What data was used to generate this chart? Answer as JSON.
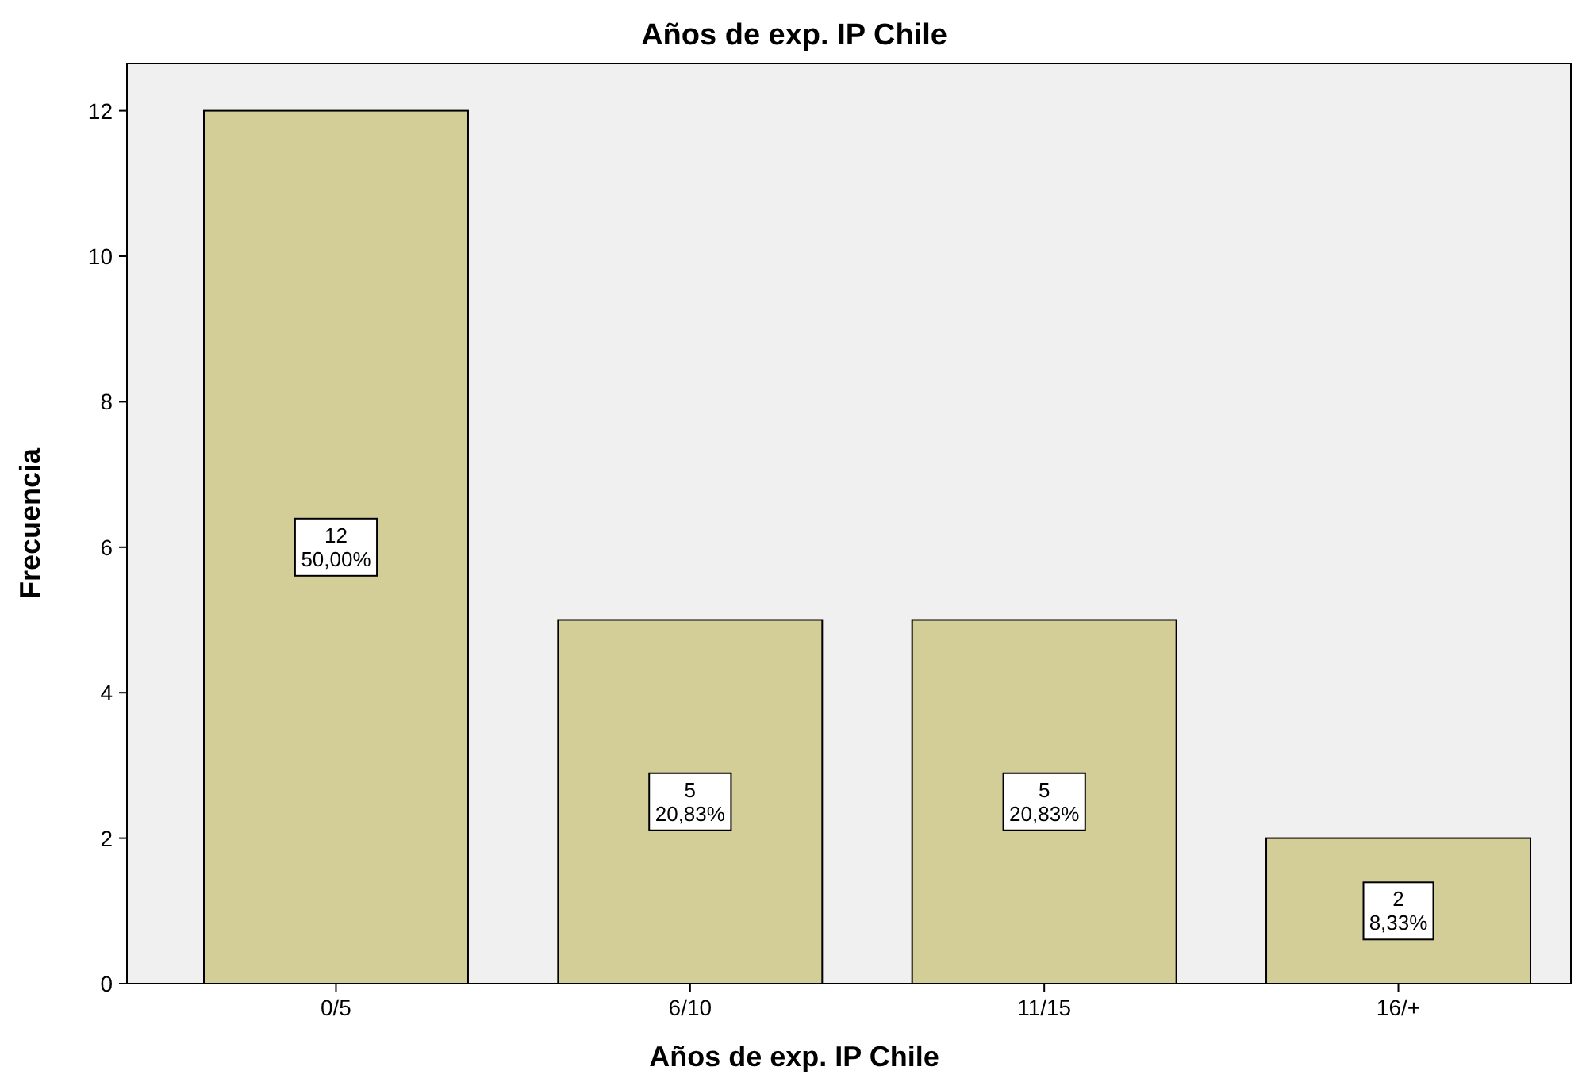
{
  "chart_data": {
    "type": "bar",
    "title": "Años de exp. IP Chile",
    "xlabel": "Años de exp. IP Chile",
    "ylabel": "Frecuencia",
    "categories": [
      "0/5",
      "6/10",
      "11/15",
      "16/+"
    ],
    "values": [
      12,
      5,
      5,
      2
    ],
    "value_labels": [
      "12\n50,00%",
      "5\n20,83%",
      "5\n20,83%",
      "2\n8,33%"
    ],
    "color": "#d3ce97",
    "ylim": [
      0,
      12.65
    ],
    "yticks": [
      0,
      2,
      4,
      6,
      8,
      10,
      12
    ],
    "grid": false
  }
}
